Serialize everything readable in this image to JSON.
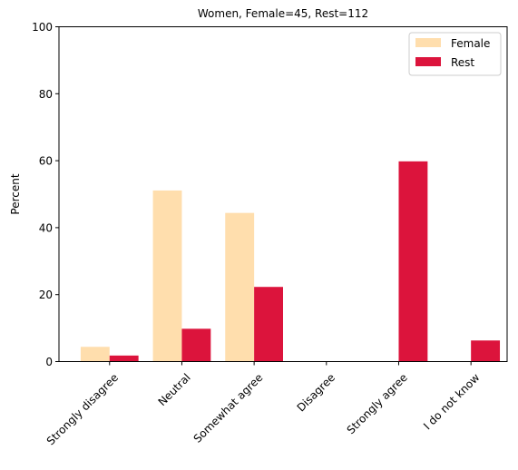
{
  "chart_data": {
    "type": "bar",
    "title": "Women, Female=45, Rest=112",
    "xlabel": "",
    "ylabel": "Percent",
    "ylim": [
      0,
      100
    ],
    "yticks": [
      0,
      20,
      40,
      60,
      80,
      100
    ],
    "categories": [
      "Strongly disagree",
      "Neutral",
      "Somewhat agree",
      "Disagree",
      "Strongly agree",
      "I do not know"
    ],
    "series": [
      {
        "name": "Female",
        "color": "#FFDEAD",
        "values": [
          4.4,
          51.1,
          44.4,
          0,
          0,
          0
        ]
      },
      {
        "name": "Rest",
        "color": "#DC143C",
        "values": [
          1.8,
          9.8,
          22.3,
          0,
          59.8,
          6.3
        ]
      }
    ],
    "legend_position": "top-right",
    "grid": false
  }
}
